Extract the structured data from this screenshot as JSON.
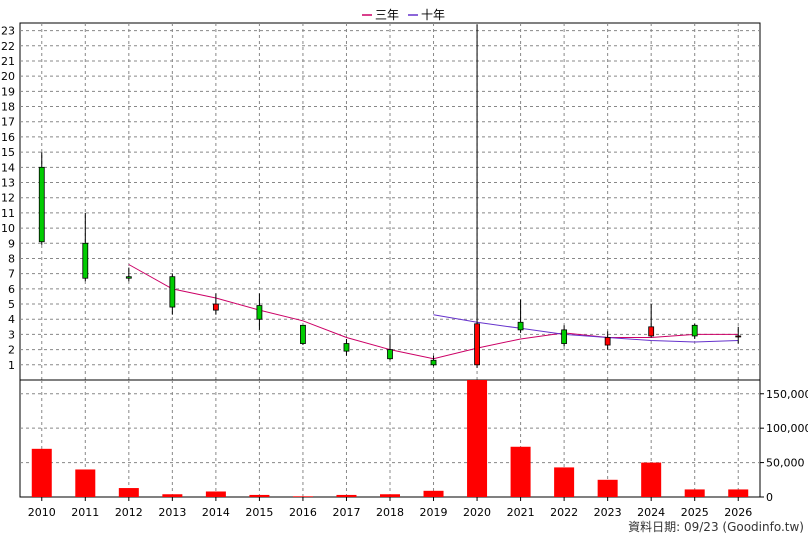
{
  "chart_data": [
    {
      "type": "candlestick",
      "x": [
        "2010",
        "2011",
        "2012",
        "2013",
        "2014",
        "2015",
        "2016",
        "2017",
        "2018",
        "2019",
        "2020",
        "2021",
        "2022",
        "2023",
        "2024",
        "2025",
        "2026"
      ],
      "ylim": [
        0,
        23.5
      ],
      "yticks": [
        1,
        2,
        3,
        4,
        5,
        6,
        7,
        8,
        9,
        10,
        11,
        12,
        13,
        14,
        15,
        16,
        17,
        18,
        19,
        20,
        21,
        22,
        23
      ],
      "grid": true,
      "up_color": "#ff0000",
      "down_color": "#00cc00",
      "candles": [
        {
          "year": "2010",
          "open": 14.0,
          "high": 15.0,
          "low": 8.9,
          "close": 9.1
        },
        {
          "year": "2011",
          "open": 9.0,
          "high": 11.0,
          "low": 6.5,
          "close": 6.7
        },
        {
          "year": "2012",
          "open": 6.8,
          "high": 7.4,
          "low": 6.5,
          "close": 6.7
        },
        {
          "year": "2013",
          "open": 6.8,
          "high": 7.0,
          "low": 4.3,
          "close": 4.8
        },
        {
          "year": "2014",
          "open": 4.6,
          "high": 5.7,
          "low": 4.3,
          "close": 5.0
        },
        {
          "year": "2015",
          "open": 4.9,
          "high": 5.7,
          "low": 3.3,
          "close": 4.0
        },
        {
          "year": "2016",
          "open": 3.6,
          "high": 3.6,
          "low": 2.3,
          "close": 2.4
        },
        {
          "year": "2017",
          "open": 2.4,
          "high": 2.7,
          "low": 1.6,
          "close": 1.9
        },
        {
          "year": "2018",
          "open": 2.0,
          "high": 3.0,
          "low": 1.3,
          "close": 1.4
        },
        {
          "year": "2019",
          "open": 1.3,
          "high": 1.6,
          "low": 0.9,
          "close": 1.0
        },
        {
          "year": "2020",
          "open": 1.0,
          "high": 23.4,
          "low": 0.8,
          "close": 3.7
        },
        {
          "year": "2021",
          "open": 3.8,
          "high": 5.3,
          "low": 3.1,
          "close": 3.3
        },
        {
          "year": "2022",
          "open": 3.3,
          "high": 3.6,
          "low": 2.2,
          "close": 2.4
        },
        {
          "year": "2023",
          "open": 2.3,
          "high": 3.2,
          "low": 2.0,
          "close": 2.8
        },
        {
          "year": "2024",
          "open": 2.9,
          "high": 5.0,
          "low": 2.8,
          "close": 3.5
        },
        {
          "year": "2025",
          "open": 3.6,
          "high": 3.7,
          "low": 2.7,
          "close": 2.9
        },
        {
          "year": "2026",
          "open": 2.9,
          "high": 3.5,
          "low": 2.4,
          "close": 2.9
        }
      ],
      "legend": {
        "placement": "top-center"
      },
      "series": [
        {
          "name": "三年",
          "color": "#cc0066",
          "values": [
            null,
            null,
            7.6,
            6.0,
            5.4,
            4.6,
            3.9,
            2.8,
            2.0,
            1.4,
            2.1,
            2.7,
            3.1,
            2.8,
            2.8,
            3.0,
            3.0
          ]
        },
        {
          "name": "十年",
          "color": "#6633cc",
          "values": [
            null,
            null,
            null,
            null,
            null,
            null,
            null,
            null,
            null,
            4.3,
            3.8,
            3.4,
            3.0,
            2.8,
            2.6,
            2.5,
            2.6
          ]
        }
      ]
    },
    {
      "type": "bar",
      "categories": [
        "2010",
        "2011",
        "2012",
        "2013",
        "2014",
        "2015",
        "2016",
        "2017",
        "2018",
        "2019",
        "2020",
        "2021",
        "2022",
        "2023",
        "2024",
        "2025",
        "2026"
      ],
      "values": [
        70000,
        40000,
        13000,
        4000,
        8000,
        3000,
        1000,
        3000,
        4000,
        9000,
        170000,
        73000,
        43000,
        25000,
        50000,
        11000,
        11000
      ],
      "ylim": [
        0,
        170000
      ],
      "yticks": [
        0,
        50000,
        100000,
        150000
      ],
      "ytick_labels": [
        "0",
        "50,000",
        "100,000",
        "150,000"
      ],
      "color": "#ff0000"
    }
  ],
  "footer": {
    "source": "資料日期: 09/23 (Goodinfo.tw)"
  }
}
